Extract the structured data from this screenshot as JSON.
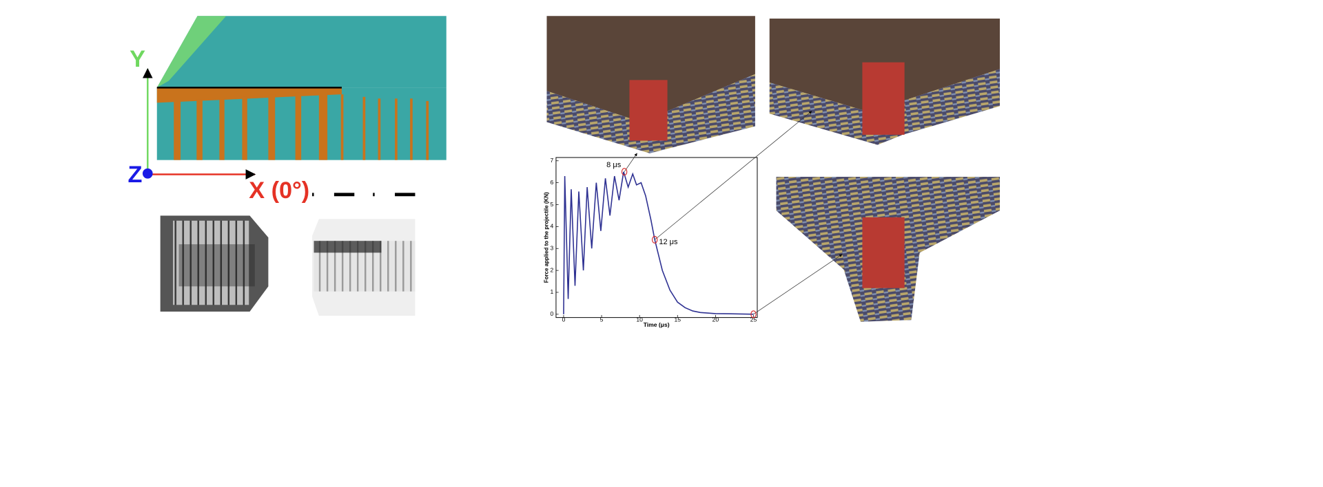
{
  "axes_diagram": {
    "y_label": "Y",
    "z_label": "Z",
    "x_label": "X (0°)"
  },
  "chart_data": {
    "type": "line",
    "x_label": "Time (μs)",
    "y_label": "Force applied to the projectile (KN)",
    "x": [
      0,
      0.15,
      0.6,
      1.0,
      1.5,
      2.0,
      2.6,
      3.1,
      3.7,
      4.3,
      4.9,
      5.5,
      6.1,
      6.7,
      7.3,
      7.9,
      8.5,
      9.1,
      9.6,
      10.2,
      10.8,
      11.5,
      12,
      13,
      14,
      15,
      16,
      17,
      18,
      20,
      22,
      25
    ],
    "y": [
      0,
      6.3,
      0.7,
      5.7,
      1.3,
      5.6,
      2.0,
      5.8,
      3.0,
      6.0,
      3.8,
      6.2,
      4.5,
      6.3,
      5.2,
      6.5,
      5.8,
      6.4,
      5.9,
      6.0,
      5.4,
      4.3,
      3.4,
      2.0,
      1.1,
      0.55,
      0.3,
      0.15,
      0.08,
      0.03,
      0.02,
      0
    ],
    "color": "#2e3192",
    "xlim": [
      -1,
      25.5
    ],
    "ylim": [
      -0.15,
      7.15
    ],
    "xticks": [
      0,
      5,
      10,
      15,
      20,
      25
    ],
    "yticks": [
      0,
      1,
      2,
      3,
      4,
      5,
      6,
      7
    ],
    "markers": {
      "x": [
        8,
        12,
        25
      ],
      "y": [
        6.5,
        3.4,
        0
      ],
      "color": "#d62728"
    },
    "annotations": [
      "8 μs",
      "12 μs"
    ]
  }
}
